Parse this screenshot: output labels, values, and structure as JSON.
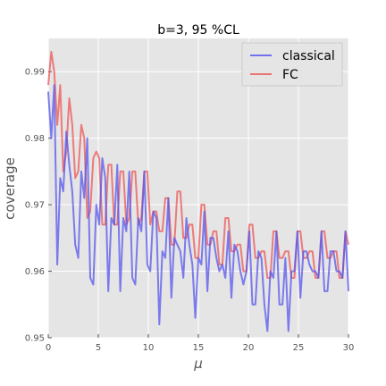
{
  "chart_data": {
    "type": "line",
    "title": "b=3, 95 %CL",
    "xlabel": "μ",
    "ylabel": "coverage",
    "xlim": [
      0,
      30
    ],
    "ylim": [
      0.95,
      0.995
    ],
    "xticks": [
      "0",
      "5",
      "10",
      "15",
      "20",
      "25",
      "30"
    ],
    "yticks": [
      "0.95",
      "0.96",
      "0.97",
      "0.98",
      "0.99"
    ],
    "grid": true,
    "legend_position": "top-right",
    "series": [
      {
        "name": "classical",
        "color": "#5555ee",
        "x": [
          0,
          0.3,
          0.6,
          0.9,
          1.2,
          1.5,
          1.8,
          2.1,
          2.4,
          2.7,
          3.0,
          3.3,
          3.6,
          3.9,
          4.2,
          4.5,
          4.8,
          5.1,
          5.4,
          5.7,
          6.0,
          6.3,
          6.6,
          6.9,
          7.2,
          7.5,
          7.8,
          8.1,
          8.4,
          8.7,
          9.0,
          9.3,
          9.6,
          9.9,
          10.2,
          10.5,
          10.8,
          11.1,
          11.4,
          11.7,
          12.0,
          12.3,
          12.6,
          12.9,
          13.2,
          13.5,
          13.8,
          14.1,
          14.4,
          14.7,
          15.0,
          15.3,
          15.6,
          15.9,
          16.2,
          16.5,
          16.8,
          17.1,
          17.4,
          17.7,
          18.0,
          18.3,
          18.6,
          18.9,
          19.2,
          19.5,
          19.8,
          20.1,
          20.4,
          20.7,
          21.0,
          21.3,
          21.6,
          21.9,
          22.2,
          22.5,
          22.8,
          23.1,
          23.4,
          23.7,
          24.0,
          24.3,
          24.6,
          24.9,
          25.2,
          25.5,
          25.8,
          26.1,
          26.4,
          26.7,
          27.0,
          27.3,
          27.6,
          27.9,
          28.2,
          28.5,
          28.8,
          29.1,
          29.4,
          29.7,
          30.0
        ],
        "values": [
          0.987,
          0.98,
          0.988,
          0.961,
          0.974,
          0.972,
          0.981,
          0.976,
          0.972,
          0.964,
          0.962,
          0.975,
          0.971,
          0.98,
          0.959,
          0.958,
          0.97,
          0.967,
          0.977,
          0.974,
          0.957,
          0.968,
          0.967,
          0.976,
          0.957,
          0.968,
          0.966,
          0.975,
          0.959,
          0.958,
          0.968,
          0.966,
          0.975,
          0.961,
          0.96,
          0.969,
          0.968,
          0.952,
          0.963,
          0.962,
          0.971,
          0.956,
          0.965,
          0.964,
          0.963,
          0.959,
          0.968,
          0.964,
          0.961,
          0.953,
          0.962,
          0.961,
          0.969,
          0.957,
          0.965,
          0.965,
          0.962,
          0.96,
          0.961,
          0.959,
          0.966,
          0.956,
          0.964,
          0.963,
          0.96,
          0.958,
          0.96,
          0.966,
          0.955,
          0.955,
          0.963,
          0.962,
          0.955,
          0.951,
          0.96,
          0.959,
          0.966,
          0.955,
          0.955,
          0.962,
          0.951,
          0.96,
          0.96,
          0.966,
          0.956,
          0.963,
          0.963,
          0.961,
          0.96,
          0.96,
          0.959,
          0.966,
          0.957,
          0.957,
          0.963,
          0.963,
          0.96,
          0.96,
          0.959,
          0.966,
          0.957
        ]
      },
      {
        "name": "FC",
        "color": "#ee5555",
        "x": [
          0,
          0.3,
          0.6,
          0.9,
          1.2,
          1.5,
          1.8,
          2.1,
          2.4,
          2.7,
          3.0,
          3.3,
          3.6,
          3.9,
          4.2,
          4.5,
          4.8,
          5.1,
          5.4,
          5.7,
          6.0,
          6.3,
          6.6,
          6.9,
          7.2,
          7.5,
          7.8,
          8.1,
          8.4,
          8.7,
          9.0,
          9.3,
          9.6,
          9.9,
          10.2,
          10.5,
          10.8,
          11.1,
          11.4,
          11.7,
          12.0,
          12.3,
          12.6,
          12.9,
          13.2,
          13.5,
          13.8,
          14.1,
          14.4,
          14.7,
          15.0,
          15.3,
          15.6,
          15.9,
          16.2,
          16.5,
          16.8,
          17.1,
          17.4,
          17.7,
          18.0,
          18.3,
          18.6,
          18.9,
          19.2,
          19.5,
          19.8,
          20.1,
          20.4,
          20.7,
          21.0,
          21.3,
          21.6,
          21.9,
          22.2,
          22.5,
          22.8,
          23.1,
          23.4,
          23.7,
          24.0,
          24.3,
          24.6,
          24.9,
          25.2,
          25.5,
          25.8,
          26.1,
          26.4,
          26.7,
          27.0,
          27.3,
          27.6,
          27.9,
          28.2,
          28.5,
          28.8,
          29.1,
          29.4,
          29.7,
          30.0
        ],
        "values": [
          0.988,
          0.993,
          0.99,
          0.982,
          0.988,
          0.975,
          0.978,
          0.986,
          0.982,
          0.974,
          0.975,
          0.982,
          0.98,
          0.968,
          0.969,
          0.977,
          0.978,
          0.977,
          0.967,
          0.967,
          0.976,
          0.976,
          0.967,
          0.967,
          0.975,
          0.975,
          0.967,
          0.968,
          0.975,
          0.975,
          0.967,
          0.968,
          0.975,
          0.975,
          0.967,
          0.969,
          0.969,
          0.966,
          0.966,
          0.971,
          0.971,
          0.964,
          0.964,
          0.972,
          0.972,
          0.965,
          0.965,
          0.967,
          0.967,
          0.962,
          0.962,
          0.97,
          0.97,
          0.964,
          0.964,
          0.966,
          0.966,
          0.961,
          0.961,
          0.968,
          0.968,
          0.963,
          0.963,
          0.964,
          0.964,
          0.96,
          0.96,
          0.967,
          0.967,
          0.962,
          0.962,
          0.963,
          0.963,
          0.959,
          0.959,
          0.966,
          0.966,
          0.962,
          0.962,
          0.963,
          0.963,
          0.959,
          0.959,
          0.966,
          0.966,
          0.962,
          0.962,
          0.963,
          0.963,
          0.959,
          0.959,
          0.966,
          0.966,
          0.962,
          0.962,
          0.963,
          0.963,
          0.959,
          0.959,
          0.966,
          0.964
        ]
      }
    ]
  }
}
